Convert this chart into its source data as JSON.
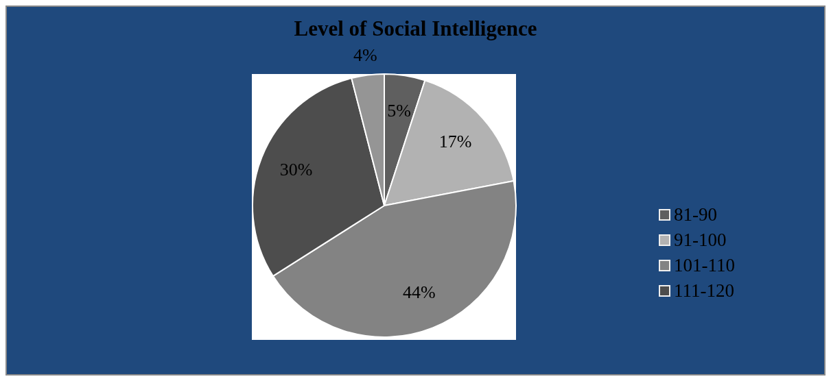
{
  "chart_data": {
    "type": "pie",
    "title": "Level of Social Intelligence",
    "categories": [
      "81-90",
      "91-100",
      "101-110",
      "111-120",
      null
    ],
    "values": [
      5,
      17,
      44,
      30,
      4
    ],
    "colors": [
      "#5f5f5f",
      "#b2b2b2",
      "#838383",
      "#4d4d4d",
      "#959595"
    ],
    "value_labels": [
      "5%",
      "17%",
      "44%",
      "30%",
      "4%"
    ],
    "legend": "right"
  }
}
